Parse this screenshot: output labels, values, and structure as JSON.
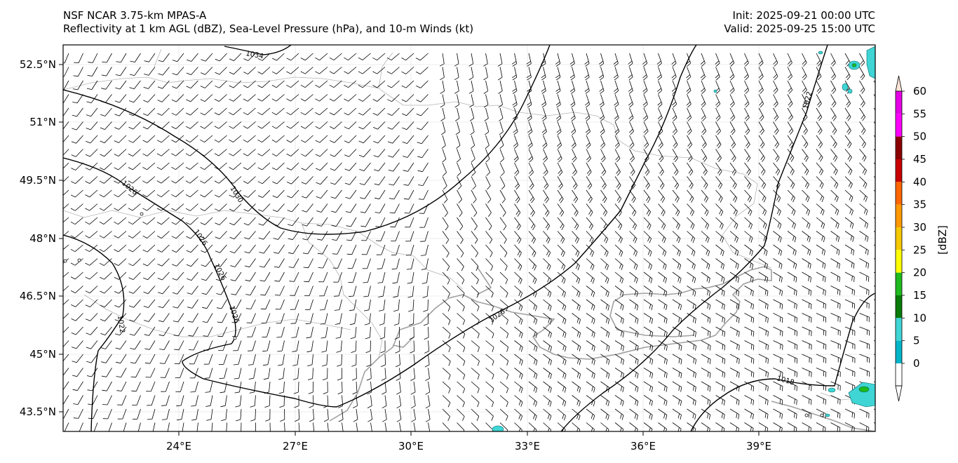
{
  "header": {
    "model": "NSF NCAR 3.75-km MPAS-A",
    "fields": "Reflectivity at 1 km AGL (dBZ), Sea-Level Pressure (hPa), and 10-m Winds (kt)",
    "init": "Init: 2025-09-21 00:00 UTC",
    "valid": "Valid: 2025-09-25 15:00 UTC"
  },
  "axes": {
    "lon_ticks": [
      "24°E",
      "27°E",
      "30°E",
      "33°E",
      "36°E",
      "39°E"
    ],
    "lat_ticks": [
      "52.5°N",
      "51°N",
      "49.5°N",
      "48°N",
      "46.5°N",
      "45°N",
      "43.5°N"
    ]
  },
  "colorbar": {
    "label": "[dBZ]",
    "ticks": [
      "0",
      "5",
      "10",
      "15",
      "20",
      "25",
      "30",
      "35",
      "40",
      "45",
      "50",
      "55",
      "60"
    ],
    "colors": [
      "#007c80",
      "#00b4c8",
      "#3fd5d5",
      "#087b08",
      "#1eba1e",
      "#ffff00",
      "#f5c800",
      "#ff9900",
      "#ff6600",
      "#c80000",
      "#8b0000",
      "#ff00ff",
      "#e600e6",
      "#ffe4d7"
    ]
  },
  "contours": {
    "labels": [
      "1034",
      "1030",
      "1026",
      "1026",
      "1026",
      "1026",
      "1022",
      "1026",
      "1022",
      "1018"
    ]
  }
}
